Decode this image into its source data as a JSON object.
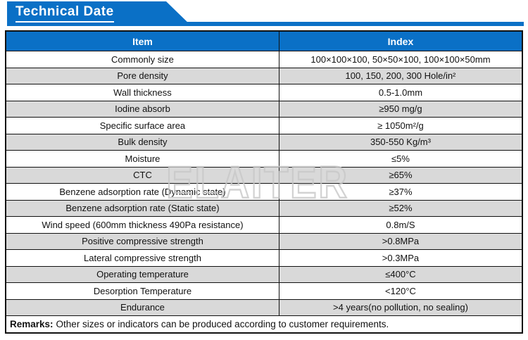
{
  "banner": {
    "title": "Technical Date"
  },
  "watermark": {
    "text": "ELAITER"
  },
  "colors": {
    "accent_blue": "#0a70c6",
    "alt_row_gray": "#d9d9d9",
    "border_black": "#111111",
    "watermark_gray": "#c8c8c8"
  },
  "table": {
    "headers": {
      "item": "Item",
      "index": "Index"
    },
    "rows": [
      {
        "item": "Commonly size",
        "index": "100×100×100, 50×50×100, 100×100×50mm"
      },
      {
        "item": "Pore density",
        "index": "100, 150, 200, 300 Hole/in²"
      },
      {
        "item": "Wall thickness",
        "index": "0.5-1.0mm"
      },
      {
        "item": "Iodine absorb",
        "index": "≥950 mg/g"
      },
      {
        "item": "Specific surface area",
        "index": "≥ 1050m²/g"
      },
      {
        "item": "Bulk density",
        "index": "350-550 Kg/m³"
      },
      {
        "item": "Moisture",
        "index": "≤5%"
      },
      {
        "item": "CTC",
        "index": "≥65%"
      },
      {
        "item": "Benzene adsorption rate (Dynamic state)",
        "index": "≥37%"
      },
      {
        "item": "Benzene adsorption rate (Static state)",
        "index": "≥52%"
      },
      {
        "item": "Wind speed (600mm thickness 490Pa resistance)",
        "index": "0.8m/S"
      },
      {
        "item": "Positive compressive strength",
        "index": ">0.8MPa"
      },
      {
        "item": "Lateral compressive strength",
        "index": ">0.3MPa"
      },
      {
        "item": "Operating temperature",
        "index": "≤400°C"
      },
      {
        "item": "Desorption Temperature",
        "index": "<120°C"
      },
      {
        "item": "Endurance",
        "index": ">4 years(no pollution, no sealing)"
      }
    ],
    "remarks": {
      "label": "Remarks:",
      "text": "Other sizes or indicators can be produced according to customer requirements."
    }
  }
}
